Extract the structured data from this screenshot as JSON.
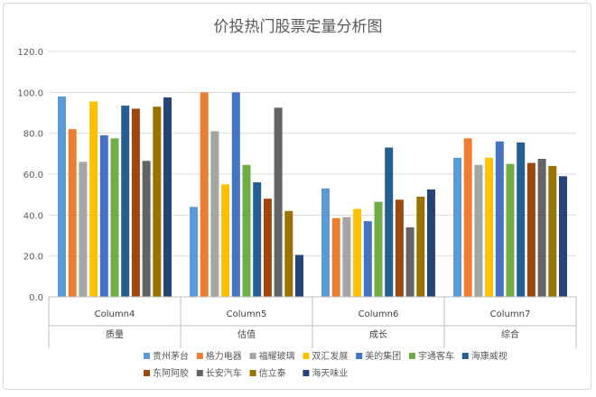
{
  "chart_data": {
    "type": "bar",
    "title": "价投热门股票定量分析图",
    "xlabel": "",
    "ylabel": "",
    "ylim": [
      0,
      120
    ],
    "yticks": [
      "0.0",
      "20.0",
      "40.0",
      "60.0",
      "80.0",
      "100.0",
      "120.0"
    ],
    "grid": true,
    "legend_position": "bottom",
    "categories": [
      {
        "sub": "Column4",
        "main": "质量"
      },
      {
        "sub": "Column5",
        "main": "估值"
      },
      {
        "sub": "Column6",
        "main": "成长"
      },
      {
        "sub": "Column7",
        "main": "综合"
      }
    ],
    "series": [
      {
        "name": "贵州茅台",
        "color": "#5B9BD5",
        "values": [
          98,
          44,
          53,
          68
        ]
      },
      {
        "name": "格力电器",
        "color": "#ED7D31",
        "values": [
          82,
          100,
          38.5,
          77.5
        ]
      },
      {
        "name": "福耀玻璃",
        "color": "#A5A5A5",
        "values": [
          66,
          81,
          39,
          64.5
        ]
      },
      {
        "name": "双汇发展",
        "color": "#FFC000",
        "values": [
          95.5,
          55,
          43,
          68
        ]
      },
      {
        "name": "美的集团",
        "color": "#4472C4",
        "values": [
          79,
          100,
          37,
          76
        ]
      },
      {
        "name": "宇通客车",
        "color": "#70AD47",
        "values": [
          77.5,
          64.5,
          46.5,
          65
        ]
      },
      {
        "name": "海康威视",
        "color": "#255E91",
        "values": [
          93.5,
          56,
          73,
          75.5
        ]
      },
      {
        "name": "东阿阿胶",
        "color": "#9E480E",
        "values": [
          92,
          48,
          47.5,
          65.5
        ]
      },
      {
        "name": "长安汽车",
        "color": "#636363",
        "values": [
          66.5,
          92.5,
          34,
          67.5
        ]
      },
      {
        "name": "信立泰",
        "color": "#997300",
        "values": [
          93,
          42,
          49,
          64
        ]
      },
      {
        "name": "海天味业",
        "color": "#264478",
        "values": [
          97.5,
          20.5,
          52.5,
          59
        ]
      }
    ]
  }
}
